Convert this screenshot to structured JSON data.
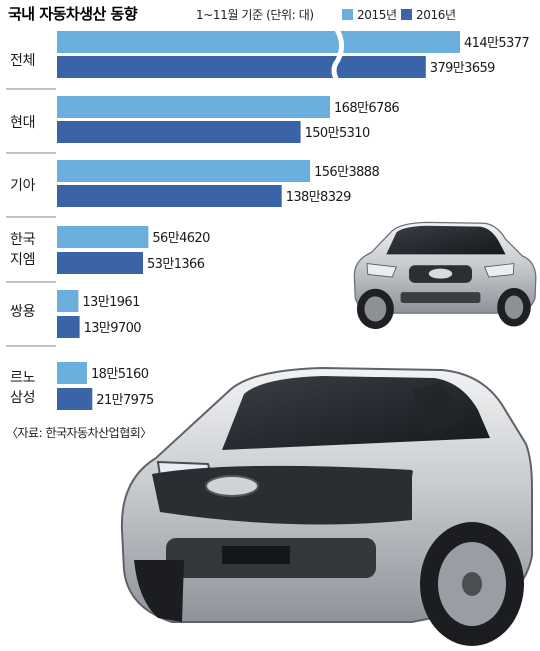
{
  "chart_data": {
    "type": "bar",
    "orientation": "horizontal",
    "title": "국내 자동차생산 동향",
    "note": "1~11월 기준 (단위: 대)",
    "source": "〈자료: 한국자동차산업협회〉",
    "categories": [
      "전체",
      "현대",
      "기아",
      "한국 지엠",
      "쌍용",
      "르노 삼성"
    ],
    "series": [
      {
        "name": "2015년",
        "color": "#6aaedd",
        "values": [
          4145377,
          1686786,
          1563888,
          564620,
          131961,
          185160
        ],
        "labels": [
          "414만5377",
          "168만6786",
          "156만3888",
          "56만4620",
          "13만1961",
          "18만5160"
        ]
      },
      {
        "name": "2016년",
        "color": "#3b63a8",
        "values": [
          3793659,
          1505310,
          1388329,
          531366,
          139700,
          217975
        ],
        "labels": [
          "379만3659",
          "150만5310",
          "138만8329",
          "53만1366",
          "13만9700",
          "21만7975"
        ]
      }
    ],
    "axis_break": "전체",
    "legend": "top-right",
    "grid": false
  },
  "decor": {
    "images": [
      "suv-small-photo",
      "suv-large-photo"
    ]
  }
}
